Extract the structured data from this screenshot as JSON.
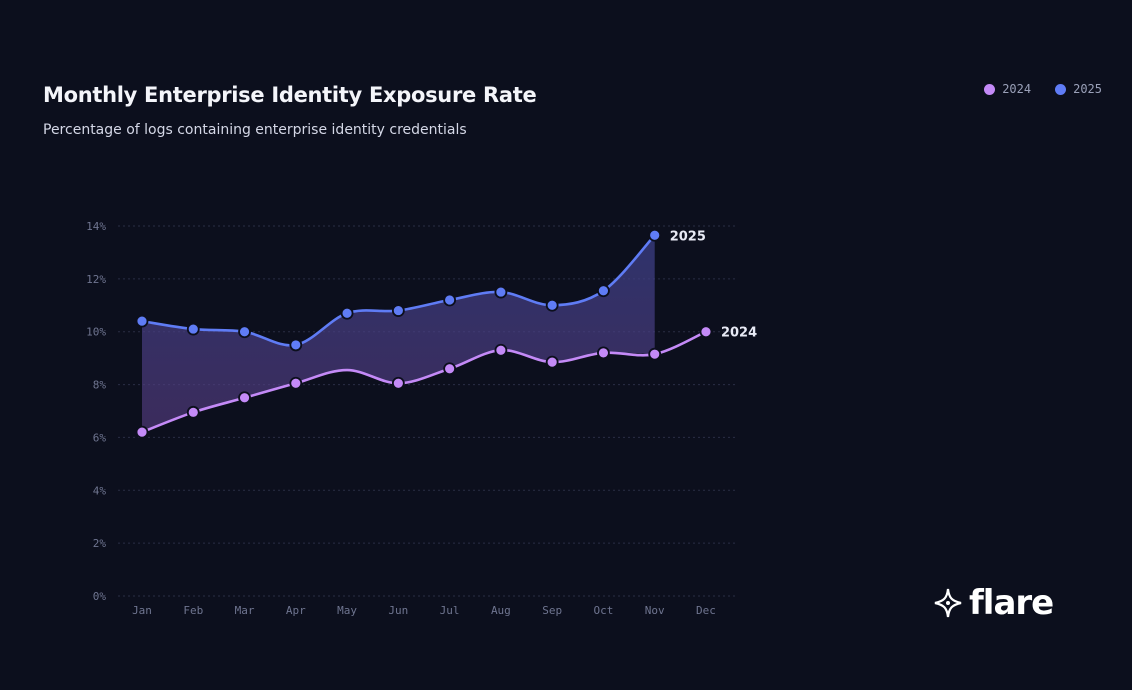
{
  "chart_data": {
    "type": "line",
    "title": "Monthly Enterprise Identity Exposure Rate",
    "subtitle": "Percentage of logs containing enterprise identity credentials",
    "categories": [
      "Jan",
      "Feb",
      "Mar",
      "Apr",
      "May",
      "Jun",
      "Jul",
      "Aug",
      "Sep",
      "Oct",
      "Nov",
      "Dec"
    ],
    "series": [
      {
        "name": "2024",
        "color": "#c48af7",
        "values": [
          6.2,
          6.95,
          7.5,
          8.05,
          8.55,
          8.05,
          8.6,
          9.3,
          8.85,
          9.2,
          9.15,
          10.0
        ],
        "marker_hidden": [
          "May"
        ],
        "end_label": "2024"
      },
      {
        "name": "2025",
        "color": "#5f7cf5",
        "values": [
          10.4,
          10.1,
          10.0,
          9.5,
          10.7,
          10.8,
          11.2,
          11.5,
          11.0,
          11.55,
          13.65,
          null
        ],
        "end_label": "2025"
      }
    ],
    "fill_between": true,
    "ylim": [
      0,
      14
    ],
    "yticks": [
      "0%",
      "2%",
      "4%",
      "6%",
      "8%",
      "10%",
      "12%",
      "14%"
    ],
    "ytick_values": [
      0,
      2,
      4,
      6,
      8,
      10,
      12,
      14
    ],
    "grid": "horizontal dotted",
    "legend": "top-right"
  },
  "brand": {
    "logo": "flare",
    "logo_icon": "sparkle-star-icon"
  }
}
